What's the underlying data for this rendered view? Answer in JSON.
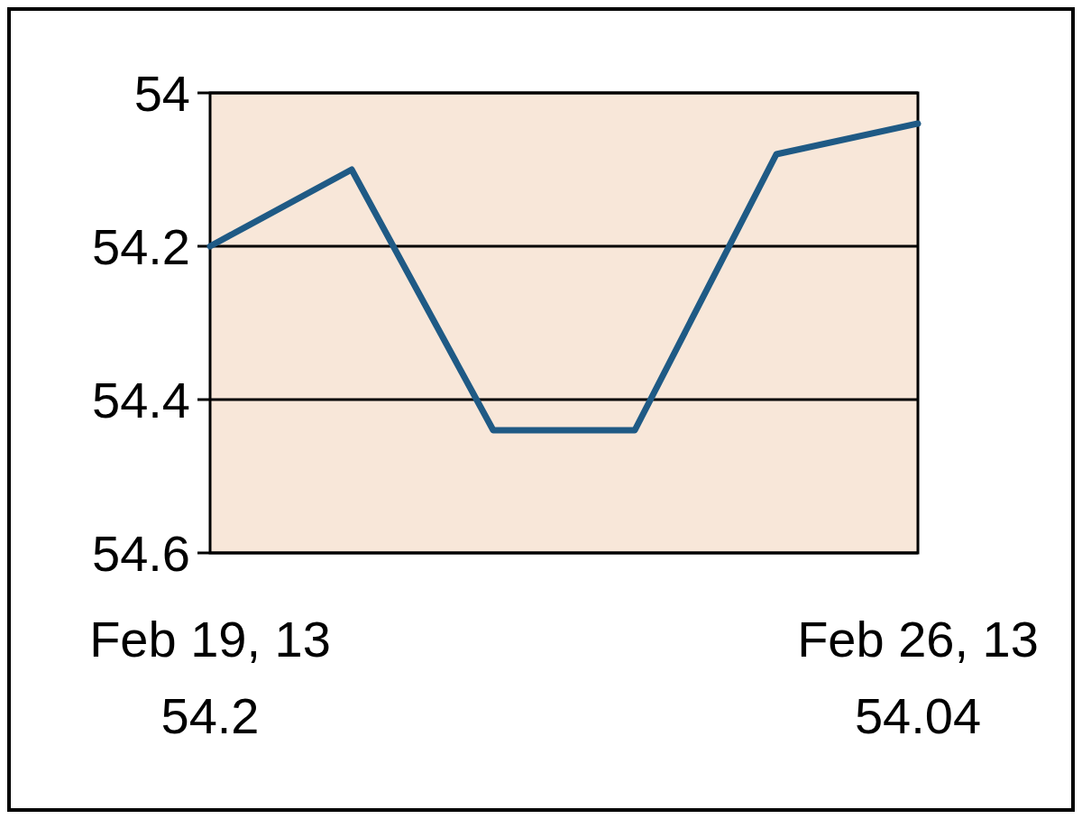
{
  "chart_data": {
    "type": "line",
    "categories": [
      "Feb 19, 13",
      null,
      null,
      null,
      null,
      "Feb 26, 13"
    ],
    "series": [
      {
        "color": "#1f5a85",
        "values": [
          54.2,
          54.1,
          54.44,
          54.44,
          54.08,
          54.04
        ],
        "value_labels": [
          "54.2",
          null,
          null,
          null,
          null,
          "54.04"
        ]
      }
    ],
    "ylim": [
      54.6,
      54
    ],
    "yticks": [
      54,
      54.2,
      54.4,
      54.6
    ],
    "grid": "y",
    "marker": "none",
    "line_style": "solid"
  }
}
